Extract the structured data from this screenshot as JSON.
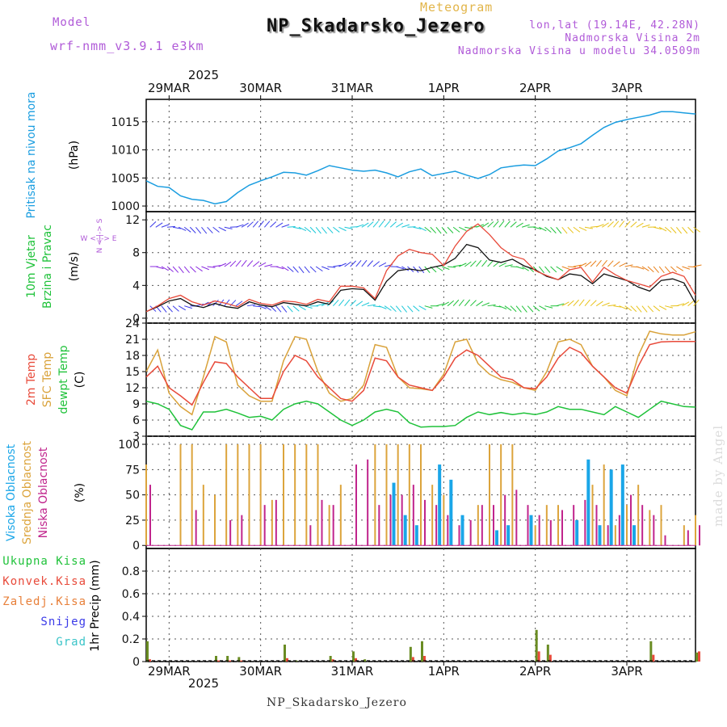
{
  "header": {
    "model_label": "Model",
    "model_value": "wrf-nmm_v3.9.1 e3km",
    "meteogram_label": "Meteogram",
    "station": "NP_Skadarsko_Jezero",
    "lonlat": "lon,lat (19.14E, 42.28N)",
    "elevation": "Nadmorska Visina 2m",
    "model_elevation": "Nadmorska Visina u modelu 34.0509m"
  },
  "time_axis": {
    "year": "2025",
    "dates": [
      "29MAR",
      "30MAR",
      "31MAR",
      "1APR",
      "2APR",
      "3APR"
    ],
    "range_hours": [
      -6,
      138
    ],
    "date_positions_hours": [
      0,
      24,
      48,
      72,
      96,
      120
    ]
  },
  "watermark": "made by Angel",
  "footer": "NP_Skadarsko_Jezero",
  "precip_legend": [
    "Ukupna Kisa",
    "Konvek.Kisa",
    "Zaledj.Kisa",
    "Snijeg",
    "Grad"
  ],
  "colors": {
    "pressure": "#1a9de0",
    "temp2m": "#e84a3a",
    "sfc": "#d9a23a",
    "dew": "#1fc23a",
    "high": "#1aa6e8",
    "mid": "#dca43c",
    "low": "#c0248c",
    "total": "#6a8c23",
    "conv": "#e84a3a",
    "frz": "#e8803a",
    "snow": "#3a3ae8",
    "grad": "#3ac4c8",
    "purple": "#b05ad8"
  },
  "chart_data": [
    {
      "type": "line",
      "panel": "pressure",
      "ylabel_left": "Pritisak na nivou mora",
      "ylabel_unit": "(hPa)",
      "ylim": [
        999,
        1019
      ],
      "yticks": [
        1000,
        1005,
        1010,
        1015
      ],
      "x_hours": [
        -6,
        -3,
        0,
        3,
        6,
        9,
        12,
        15,
        18,
        21,
        24,
        27,
        30,
        33,
        36,
        39,
        42,
        45,
        48,
        51,
        54,
        57,
        60,
        63,
        66,
        69,
        72,
        75,
        78,
        81,
        84,
        87,
        90,
        93,
        96,
        99,
        102,
        105,
        108,
        111,
        114,
        117,
        120,
        123,
        126,
        129,
        132,
        135,
        138
      ],
      "values": [
        1004.5,
        1003.5,
        1003.3,
        1001.8,
        1001.2,
        1001.0,
        1000.4,
        1000.8,
        1002.4,
        1003.7,
        1004.5,
        1005.2,
        1006.0,
        1005.9,
        1005.5,
        1006.3,
        1007.2,
        1006.8,
        1006.4,
        1006.2,
        1006.4,
        1005.9,
        1005.2,
        1006.1,
        1006.6,
        1005.4,
        1005.8,
        1006.2,
        1005.5,
        1004.9,
        1005.6,
        1006.8,
        1007.1,
        1007.3,
        1007.2,
        1008.4,
        1009.8,
        1010.4,
        1011.1,
        1012.6,
        1014.0,
        1014.9,
        1015.4,
        1015.8,
        1016.2,
        1016.8,
        1016.8,
        1016.6,
        1016.4
      ],
      "series_name": "Pritisak"
    },
    {
      "type": "line",
      "panel": "wind",
      "ylabel_left": "10m Vjetar Brzina i Pravac",
      "ylabel_unit": "(m/s)",
      "compass_label": "W <-|-> E",
      "compass_vertical": "N <-|-> S",
      "ylim": [
        -0.6,
        13
      ],
      "yticks": [
        0,
        4,
        8,
        12
      ],
      "x_hours": [
        -6,
        -3,
        0,
        3,
        6,
        9,
        12,
        15,
        18,
        21,
        24,
        27,
        30,
        33,
        36,
        39,
        42,
        45,
        48,
        51,
        54,
        57,
        60,
        63,
        66,
        69,
        72,
        75,
        78,
        81,
        84,
        87,
        90,
        93,
        96,
        99,
        102,
        105,
        108,
        111,
        114,
        117,
        120,
        123,
        126,
        129,
        132,
        135,
        138
      ],
      "series": [
        {
          "name": "wind speed",
          "values": [
            0.8,
            1.4,
            2.1,
            2.4,
            1.6,
            1.3,
            1.8,
            1.4,
            1.2,
            2.0,
            1.6,
            1.4,
            1.9,
            1.7,
            1.5,
            2.0,
            1.7,
            3.4,
            3.6,
            3.5,
            2.2,
            4.5,
            5.8,
            6.0,
            5.8,
            6.2,
            6.5,
            7.3,
            9.0,
            8.6,
            7.1,
            6.8,
            7.2,
            6.4,
            5.9,
            5.1,
            4.7,
            5.4,
            5.2,
            4.2,
            5.4,
            5.0,
            4.6,
            3.8,
            3.3,
            4.6,
            4.8,
            4.3,
            1.8
          ]
        },
        {
          "name": "gust",
          "values": [
            0.8,
            1.5,
            2.4,
            2.8,
            2.0,
            1.6,
            2.1,
            1.8,
            1.4,
            2.3,
            1.8,
            1.6,
            2.1,
            2.0,
            1.7,
            2.3,
            2.0,
            3.9,
            3.9,
            3.7,
            2.4,
            5.8,
            7.6,
            8.4,
            8.0,
            7.8,
            6.4,
            8.8,
            10.6,
            11.5,
            10.2,
            8.6,
            7.6,
            7.2,
            5.8,
            5.2,
            4.7,
            5.9,
            6.2,
            4.4,
            6.2,
            5.3,
            4.6,
            4.2,
            3.8,
            5.1,
            5.6,
            5.1,
            2.8
          ]
        }
      ],
      "barb_rows": [
        {
          "level": 11.1,
          "colors": [
            "blue",
            "cyan",
            "green",
            "yellow"
          ]
        },
        {
          "level": 6.3,
          "colors": [
            "purple",
            "blue",
            "green",
            "orange"
          ]
        },
        {
          "level": 1.5,
          "colors": [
            "blue",
            "cyan",
            "green",
            "yellow"
          ]
        }
      ]
    },
    {
      "type": "line",
      "panel": "temperature",
      "ylabels_left": [
        "2m Temp",
        "SFC Temp",
        "dewpt Temp"
      ],
      "ylabel_unit": "(C)",
      "ylim": [
        3,
        24
      ],
      "yticks": [
        3,
        6,
        9,
        12,
        15,
        18,
        21,
        24
      ],
      "x_hours": [
        -6,
        -3,
        0,
        3,
        6,
        9,
        12,
        15,
        18,
        21,
        24,
        27,
        30,
        33,
        36,
        39,
        42,
        45,
        48,
        51,
        54,
        57,
        60,
        63,
        66,
        69,
        72,
        75,
        78,
        81,
        84,
        87,
        90,
        93,
        96,
        99,
        102,
        105,
        108,
        111,
        114,
        117,
        120,
        123,
        126,
        129,
        132,
        135,
        138
      ],
      "series": [
        {
          "name": "2m Temp",
          "values": [
            14,
            16,
            12,
            10.5,
            8.8,
            13,
            16.8,
            16.5,
            14,
            12,
            10,
            10,
            15,
            18,
            17,
            14,
            12,
            10,
            9.5,
            11.5,
            17.5,
            17,
            14,
            12.5,
            12,
            11.5,
            14,
            17.5,
            19,
            18,
            16,
            14,
            13.5,
            12,
            11.8,
            14,
            17.5,
            19.5,
            18.5,
            16,
            14,
            12,
            11,
            16,
            20,
            20.5,
            20.6,
            20.6,
            20.6
          ]
        },
        {
          "name": "SFC Temp",
          "values": [
            15,
            19,
            11,
            8.5,
            7.0,
            14,
            21.5,
            20.5,
            12.5,
            10.5,
            9.5,
            9.5,
            17,
            21.5,
            21,
            15,
            11,
            9.5,
            10,
            12.5,
            20,
            19.5,
            14,
            12,
            11.8,
            11.5,
            14.5,
            20.5,
            21,
            16.5,
            14.5,
            13.5,
            13,
            12,
            11.5,
            15,
            20.5,
            21,
            20,
            16,
            14,
            11.5,
            10.5,
            18,
            22.5,
            22,
            21.8,
            21.8,
            22.4
          ]
        },
        {
          "name": "dewpt Temp",
          "values": [
            9.5,
            9.0,
            8.0,
            5.0,
            4.2,
            7.5,
            7.5,
            8.0,
            7.3,
            6.5,
            6.7,
            6.0,
            8.0,
            9.0,
            9.5,
            9.0,
            7.5,
            6.0,
            5.0,
            6.0,
            7.5,
            8.0,
            7.5,
            5.5,
            4.7,
            4.8,
            4.8,
            5.0,
            6.5,
            7.5,
            7.0,
            7.4,
            7.0,
            7.3,
            7.0,
            7.5,
            8.5,
            8.0,
            8.0,
            7.5,
            7.0,
            8.5,
            7.5,
            6.5,
            8.0,
            9.5,
            9.0,
            8.5,
            8.4
          ]
        }
      ]
    },
    {
      "type": "bar",
      "panel": "cloud",
      "ylabels_left": [
        "Visoka Oblacnost",
        "Srednja Oblacnost",
        "Niska Oblacnost"
      ],
      "ylabel_unit": "(%)",
      "ylim": [
        -3,
        108
      ],
      "yticks": [
        0,
        25,
        50,
        75,
        100
      ],
      "x_hours": [
        -6,
        -3,
        0,
        3,
        6,
        9,
        12,
        15,
        18,
        21,
        24,
        27,
        30,
        33,
        36,
        39,
        42,
        45,
        48,
        51,
        54,
        57,
        60,
        63,
        66,
        69,
        72,
        75,
        78,
        81,
        84,
        87,
        90,
        93,
        96,
        99,
        102,
        105,
        108,
        111,
        114,
        117,
        120,
        123,
        126,
        129,
        132,
        135,
        138
      ],
      "series": [
        {
          "name": "Srednja Oblacnost",
          "values": [
            80,
            0,
            0,
            100,
            100,
            60,
            50,
            100,
            100,
            100,
            100,
            45,
            100,
            100,
            100,
            100,
            40,
            60,
            0,
            0,
            100,
            100,
            100,
            100,
            100,
            60,
            50,
            0,
            0,
            40,
            100,
            100,
            100,
            0,
            20,
            40,
            40,
            0,
            0,
            60,
            80,
            20,
            40,
            60,
            35,
            40,
            0,
            20,
            30
          ]
        },
        {
          "name": "Niska Oblacnost",
          "values": [
            60,
            0,
            0,
            0,
            35,
            0,
            0,
            25,
            30,
            0,
            40,
            45,
            0,
            0,
            20,
            45,
            40,
            0,
            80,
            85,
            40,
            50,
            50,
            60,
            45,
            40,
            30,
            20,
            25,
            40,
            40,
            50,
            55,
            40,
            30,
            25,
            35,
            40,
            45,
            40,
            20,
            30,
            50,
            40,
            30,
            10,
            0,
            15,
            20
          ]
        },
        {
          "name": "Visoka Oblacnost",
          "values": [
            0,
            0,
            0,
            0,
            0,
            0,
            0,
            0,
            0,
            0,
            0,
            0,
            0,
            0,
            0,
            0,
            0,
            0,
            0,
            0,
            0,
            62,
            30,
            20,
            0,
            80,
            65,
            30,
            0,
            0,
            15,
            20,
            0,
            30,
            0,
            0,
            0,
            25,
            85,
            20,
            75,
            80,
            20,
            0,
            0,
            0,
            0,
            0,
            0
          ]
        }
      ]
    },
    {
      "type": "bar",
      "panel": "precipitation",
      "ylabel_unit": "1hr Precip (mm)",
      "ylim": [
        0,
        1.0
      ],
      "yticks": [
        0,
        0.2,
        0.4,
        0.6,
        0.8
      ],
      "x_hours": [
        -6,
        -3,
        0,
        3,
        6,
        9,
        12,
        15,
        18,
        21,
        24,
        27,
        30,
        33,
        36,
        39,
        42,
        45,
        48,
        51,
        54,
        57,
        60,
        63,
        66,
        69,
        72,
        75,
        78,
        81,
        84,
        87,
        90,
        93,
        96,
        99,
        102,
        105,
        108,
        111,
        114,
        117,
        120,
        123,
        126,
        129,
        132,
        135,
        138
      ],
      "series": [
        {
          "name": "Ukupna Kisa",
          "values": [
            0.18,
            0,
            0,
            0,
            0,
            0,
            0.05,
            0.05,
            0.04,
            0,
            0,
            0,
            0.15,
            0.01,
            0,
            0,
            0.05,
            0,
            0.09,
            0.02,
            0,
            0,
            0,
            0.13,
            0.18,
            0,
            0,
            0,
            0,
            0,
            0,
            0,
            0,
            0,
            0.28,
            0.15,
            0,
            0,
            0,
            0,
            0,
            0,
            0,
            0,
            0.18,
            0,
            0,
            0,
            0.08
          ]
        },
        {
          "name": "Konvek.Kisa",
          "values": [
            0.02,
            0,
            0,
            0,
            0,
            0,
            0.01,
            0.01,
            0.01,
            0,
            0,
            0,
            0.03,
            0,
            0,
            0,
            0.02,
            0,
            0.03,
            0,
            0,
            0,
            0,
            0.04,
            0.05,
            0,
            0,
            0,
            0,
            0,
            0,
            0,
            0,
            0,
            0.09,
            0.06,
            0,
            0,
            0,
            0,
            0,
            0,
            0,
            0,
            0.06,
            0,
            0,
            0,
            0.09
          ]
        }
      ]
    }
  ]
}
